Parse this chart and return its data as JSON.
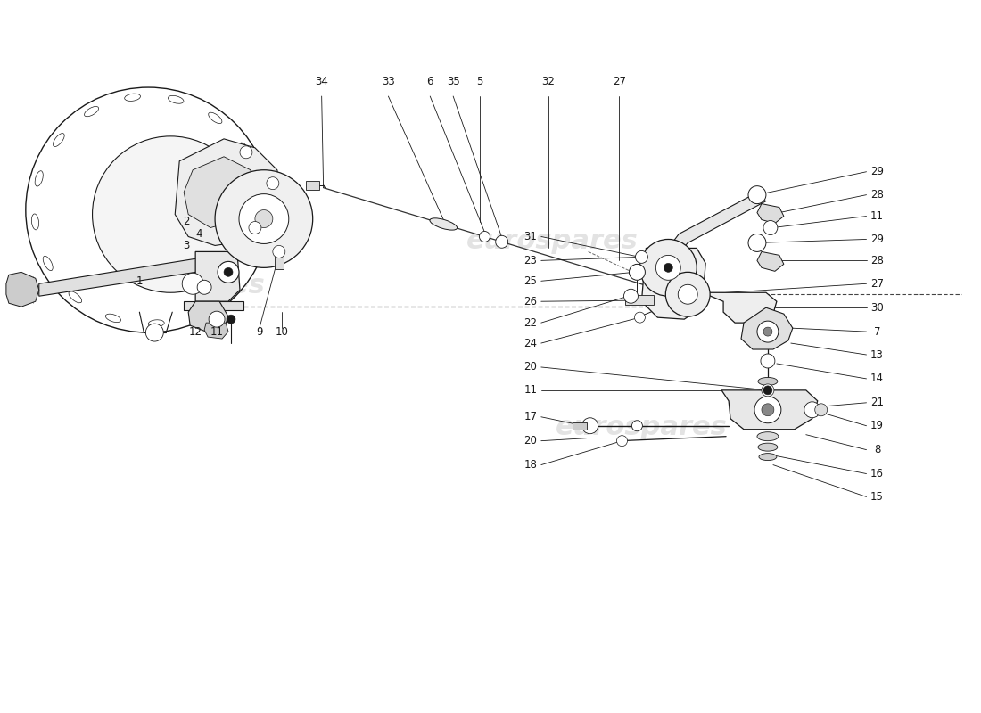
{
  "background_color": "#ffffff",
  "line_color": "#1a1a1a",
  "watermark_color": "#cccccc",
  "watermark_text": "eurospares",
  "fig_width": 11.0,
  "fig_height": 8.0,
  "dpi": 100
}
